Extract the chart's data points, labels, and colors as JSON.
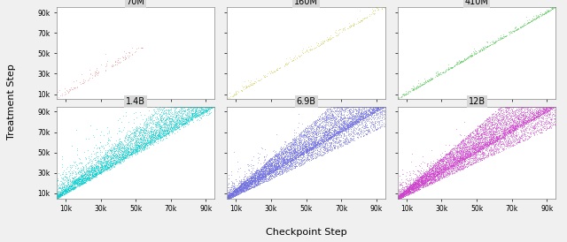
{
  "panels": [
    {
      "title": "70M",
      "color": "#E88080",
      "density": 0.08,
      "x_max": 55000,
      "sparse": true
    },
    {
      "title": "160M",
      "color": "#CCCC55",
      "density": 0.3,
      "x_max": 95000,
      "sparse": false
    },
    {
      "title": "410M",
      "color": "#55CC55",
      "density": 0.6,
      "x_max": 95000,
      "sparse": false
    },
    {
      "title": "1.4B",
      "color": "#00CCCC",
      "density": 1.5,
      "x_max": 95000,
      "sparse": false
    },
    {
      "title": "6.9B",
      "color": "#7070DD",
      "density": 3.0,
      "x_max": 95000,
      "sparse": false
    },
    {
      "title": "12B",
      "color": "#CC44CC",
      "density": 3.0,
      "x_max": 95000,
      "sparse": false
    }
  ],
  "x_min": 5000,
  "x_max": 95000,
  "y_min": 5000,
  "y_max": 95000,
  "tick_vals": [
    10000,
    30000,
    50000,
    70000,
    90000
  ],
  "tick_labels": [
    "10k",
    "30k",
    "50k",
    "70k",
    "90k"
  ],
  "ytick_vals": [
    10000,
    30000,
    50000,
    70000,
    90000
  ],
  "ytick_labels": [
    "10k",
    "30k",
    "50k",
    "70k",
    "90k"
  ],
  "xlabel": "Checkpoint Step",
  "ylabel": "Treatment Step",
  "background_color": "#f0f0f0",
  "panel_bg": "#ffffff"
}
